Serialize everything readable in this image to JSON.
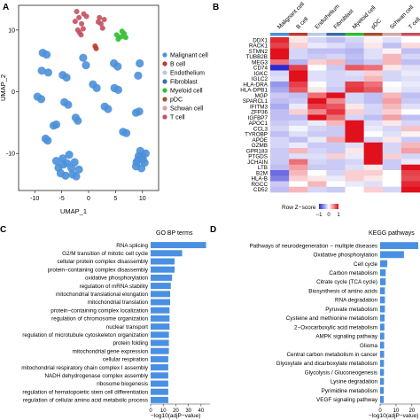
{
  "panels": {
    "a": {
      "letter": "A"
    },
    "b": {
      "letter": "B"
    },
    "c": {
      "letter": "C"
    },
    "d": {
      "letter": "D"
    }
  },
  "colors": {
    "malignant": "#4a90d9",
    "bcell": "#c0392b",
    "endothelium": "#b9c9e6",
    "fibroblast": "#3a6ea5",
    "myeloid": "#2fbf2f",
    "pdc": "#a0522d",
    "schwan": "#d4a5a5",
    "tcell": "#c4505e",
    "bar": "#4a90e2",
    "heat_low": "#2b2bd6",
    "heat_mid": "#ffffff",
    "heat_high": "#e0101c"
  },
  "chart_data": [
    {
      "type": "scatter",
      "title": "",
      "xlabel": "UMAP_1",
      "ylabel": "UMAP_2",
      "xticks": [
        "-10",
        "-5",
        "0",
        "5",
        "10"
      ],
      "yticks": [
        "10",
        "0",
        "-10"
      ],
      "xlim": [
        -13,
        13
      ],
      "ylim": [
        -16,
        14
      ],
      "legend": {
        "placement": "right",
        "entries": [
          "Malignant cell",
          "B cell",
          "Endothelium",
          "Fibroblast",
          "Myeloid cell",
          "pDC",
          "Schwan cell",
          "T cell"
        ]
      },
      "clusters": [
        {
          "cell_type": "T cell",
          "points": [
            [
              -2.2,
              13.0
            ],
            [
              -1.8,
              12.0
            ],
            [
              -1.3,
              11.0
            ],
            [
              -2.0,
              10.0
            ],
            [
              -1.4,
              9.2
            ],
            [
              -0.9,
              12.6
            ],
            [
              -2.5,
              11.4
            ],
            [
              -1.0,
              10.2
            ],
            [
              -0.4,
              12.2
            ],
            [
              -1.7,
              9.6
            ]
          ]
        },
        {
          "cell_type": "T cell",
          "points": [
            [
              2.0,
              12.0
            ],
            [
              2.3,
              11.0
            ],
            [
              2.6,
              10.3
            ],
            [
              1.8,
              11.3
            ],
            [
              2.9,
              11.7
            ]
          ]
        },
        {
          "cell_type": "B cell",
          "points": [
            [
              1.2,
              7.4
            ],
            [
              1.4,
              7.0
            ]
          ]
        },
        {
          "cell_type": "Myeloid cell",
          "points": [
            [
              5.2,
              9.2
            ],
            [
              6.0,
              8.9
            ],
            [
              6.6,
              9.4
            ],
            [
              5.5,
              8.5
            ],
            [
              6.9,
              8.8
            ],
            [
              6.2,
              9.8
            ]
          ]
        },
        {
          "cell_type": "Malignant cell",
          "points": [
            [
              -8.5,
              6.3
            ],
            [
              -7.8,
              6.0
            ],
            [
              -7.5,
              3.1
            ],
            [
              -8.7,
              3.4
            ],
            [
              -1.0,
              5.5
            ],
            [
              -0.5,
              4.3
            ],
            [
              4.7,
              4.6
            ],
            [
              5.4,
              4.1
            ],
            [
              9.5,
              4.6
            ],
            [
              9.2,
              2.6
            ],
            [
              -4.8,
              2.7
            ],
            [
              -4.1,
              2.3
            ],
            [
              0.8,
              1.2
            ],
            [
              1.5,
              0.6
            ],
            [
              4.8,
              0.6
            ],
            [
              5.5,
              0.3
            ]
          ]
        },
        {
          "cell_type": "Malignant cell",
          "points": [
            [
              -9.5,
              -0.8
            ],
            [
              -8.8,
              -1.2
            ],
            [
              -4.5,
              -1.7
            ],
            [
              -3.8,
              -2.1
            ],
            [
              -2.4,
              -4.2
            ],
            [
              -2.0,
              -4.7
            ],
            [
              -6.5,
              -5.5
            ],
            [
              -6.0,
              -5.3
            ],
            [
              -8.0,
              -7.6
            ],
            [
              -7.6,
              -7.9
            ],
            [
              3.0,
              -2.4
            ],
            [
              3.6,
              -2.8
            ],
            [
              8.8,
              -3.4
            ],
            [
              9.4,
              -3.2
            ],
            [
              6.4,
              -6.5
            ],
            [
              7.0,
              -6.7
            ]
          ]
        },
        {
          "cell_type": "Malignant cell",
          "points": [
            [
              -4.8,
              -10.8
            ],
            [
              -4.0,
              -11.6
            ],
            [
              -3.2,
              -12.4
            ],
            [
              -5.6,
              -12.3
            ],
            [
              -4.3,
              -13.6
            ],
            [
              -2.6,
              -11.4
            ],
            [
              -3.6,
              -10.2
            ],
            [
              -5.2,
              -13.2
            ],
            [
              -3.0,
              -13.4
            ],
            [
              -4.7,
              -11.8
            ],
            [
              -1.8,
              -12.6
            ],
            [
              -2.3,
              -13.7
            ],
            [
              -6.0,
              -11.2
            ]
          ]
        },
        {
          "cell_type": "Malignant cell",
          "points": [
            [
              9.6,
              -9.6
            ],
            [
              10.0,
              -10.4
            ],
            [
              9.2,
              -11.0
            ],
            [
              10.4,
              -11.5
            ],
            [
              9.8,
              -12.4
            ],
            [
              8.8,
              -12.1
            ],
            [
              10.6,
              -10.0
            ],
            [
              9.3,
              -10.4
            ],
            [
              10.1,
              -11.0
            ],
            [
              8.9,
              -11.4
            ]
          ]
        }
      ]
    },
    {
      "type": "heatmap",
      "title": "",
      "columns": [
        "Malignant cell",
        "B cell",
        "Endothelium",
        "Fibroblast",
        "Myeloid cell",
        "pDC",
        "Schwan cell",
        "T cell"
      ],
      "rows": [
        "DDX1",
        "RACK1",
        "STMN2",
        "TUBB2B",
        "MEG3",
        "CD74",
        "IGKC",
        "IGLC2",
        "HLA-DRA",
        "HLA-DPB1",
        "MGP",
        "SPARCL1",
        "IFITM3",
        "ZFP36",
        "IGFBP7",
        "APOC1",
        "CCL3",
        "TYROBP",
        "APOE",
        "GZMB",
        "GPR183",
        "PTGDS",
        "JCHAIN",
        "LTB",
        "B2M",
        "HLA-B",
        "RGCC",
        "CD52"
      ],
      "values": [
        [
          1.8,
          0.2,
          -0.4,
          -0.6,
          -0.4,
          0.1,
          -0.3,
          0.0
        ],
        [
          1.6,
          0.4,
          -0.2,
          -0.3,
          -0.5,
          0.2,
          -0.6,
          0.3
        ],
        [
          2.2,
          -0.4,
          -0.6,
          -0.6,
          -0.7,
          -0.3,
          0.1,
          -0.6
        ],
        [
          2.0,
          -0.4,
          -0.5,
          -0.4,
          -0.6,
          -0.3,
          0.6,
          -0.4
        ],
        [
          1.2,
          -0.7,
          0.4,
          0.6,
          -0.7,
          -0.5,
          0.6,
          -0.6
        ],
        [
          -2.6,
          1.6,
          0.0,
          -0.5,
          1.4,
          1.2,
          0.2,
          -0.3
        ],
        [
          -0.4,
          2.4,
          -0.3,
          -0.4,
          -0.3,
          0.4,
          -0.4,
          -0.2
        ],
        [
          -0.3,
          2.3,
          -0.3,
          -0.4,
          -0.4,
          0.6,
          -0.4,
          -0.3
        ],
        [
          -1.0,
          1.6,
          0.0,
          -0.4,
          1.6,
          1.2,
          0.0,
          -0.2
        ],
        [
          -0.8,
          1.4,
          0.2,
          -0.5,
          1.7,
          1.4,
          -0.1,
          -0.3
        ],
        [
          -0.5,
          -0.6,
          1.2,
          2.2,
          -0.4,
          -0.6,
          0.6,
          -0.6
        ],
        [
          -0.6,
          -0.5,
          2.2,
          1.0,
          -0.4,
          -0.6,
          0.8,
          -0.5
        ],
        [
          -0.8,
          -0.2,
          1.6,
          1.4,
          0.2,
          -0.4,
          0.6,
          -0.3
        ],
        [
          -0.6,
          0.4,
          1.0,
          1.7,
          0.4,
          -0.4,
          0.4,
          0.0
        ],
        [
          -0.6,
          -0.6,
          2.2,
          1.2,
          -0.4,
          -0.6,
          0.8,
          -0.6
        ],
        [
          -0.5,
          -0.4,
          -0.2,
          0.6,
          2.4,
          -0.3,
          0.2,
          -0.4
        ],
        [
          -0.4,
          -0.1,
          -0.4,
          -0.5,
          2.2,
          -0.2,
          -0.4,
          0.5
        ],
        [
          -0.6,
          -0.3,
          -0.5,
          -0.5,
          2.3,
          0.0,
          -0.3,
          0.1
        ],
        [
          -0.4,
          -0.6,
          -0.2,
          0.7,
          2.0,
          -0.4,
          0.2,
          -0.5
        ],
        [
          -0.4,
          -0.2,
          -0.5,
          -0.5,
          -0.3,
          2.4,
          -0.4,
          0.6
        ],
        [
          -0.5,
          0.6,
          -0.4,
          -0.5,
          0.2,
          2.0,
          -0.4,
          0.8
        ],
        [
          -0.5,
          -0.3,
          -0.3,
          0.4,
          -0.2,
          2.3,
          0.4,
          -0.4
        ],
        [
          -0.5,
          1.2,
          -0.4,
          -0.5,
          -0.4,
          2.0,
          -0.5,
          -0.2
        ],
        [
          -0.6,
          0.8,
          -0.5,
          -0.5,
          -0.3,
          0.2,
          -0.5,
          2.0
        ],
        [
          -1.4,
          0.6,
          0.0,
          -0.4,
          0.4,
          0.4,
          0.0,
          1.6
        ],
        [
          -1.2,
          0.4,
          0.2,
          -0.2,
          0.4,
          0.2,
          0.0,
          1.5
        ],
        [
          -0.5,
          0.0,
          0.6,
          0.0,
          -0.2,
          -0.3,
          0.0,
          1.8
        ],
        [
          -0.6,
          0.6,
          -0.4,
          -0.5,
          0.0,
          0.4,
          -0.4,
          2.0
        ]
      ],
      "legend": {
        "title": "Row Z−score",
        "ticks": [
          "−1",
          "0",
          "1"
        ],
        "placement": "bottom"
      }
    },
    {
      "type": "bar",
      "orientation": "horizontal",
      "title": "GO BP terms",
      "xlabel": "−log10(adjP−value)",
      "xticks": [
        "0",
        "10",
        "20",
        "30",
        "40"
      ],
      "xlim": [
        0,
        45
      ],
      "categories": [
        "RNA splicing",
        "G2/M transition of mitotic cell cycle",
        "cellular protein complex disassembly",
        "protein−containing complex disassembly",
        "oxidative phosphorylation",
        "regulation of mRNA stability",
        "mitochondrial translational elongation",
        "mitochondrial translation",
        "protein−containing complex localization",
        "regulation of chromosome organization",
        "nuclear transport",
        "regulation of microtubule cytoskeleton organization",
        "protein folding",
        "mitochondrial gene expression",
        "cellular respiration",
        "mitochondrial respiratory chain complex I assembly",
        "NADH dehydrogenase complex assembly",
        "ribosome biogenesis",
        "regulation of hematopoietic stem cell differentiation",
        "regulation of cellular amino acid metabolic process"
      ],
      "values": [
        44,
        25,
        19,
        19,
        17,
        16,
        15.5,
        15.5,
        15,
        15,
        15,
        14.5,
        14.5,
        14.5,
        14,
        14,
        14,
        14,
        14,
        14
      ]
    },
    {
      "type": "bar",
      "orientation": "horizontal",
      "title": "KEGG pathways",
      "xlabel": "−log10(adjP−value)",
      "xticks": [
        "0",
        "10",
        "20"
      ],
      "xlim": [
        0,
        24
      ],
      "categories": [
        "Pathways of neurodegeneration − multiple diseases",
        "Oxidative phosphorylation",
        "Cell cycle",
        "Carbon metabolism",
        "Citrate cycle (TCA cycle)",
        "Biosynthesis of amino acids",
        "RNA degradation",
        "Pyruvate metabolism",
        "Cysteine and methionine metabolism",
        "2−Oxocarboxylic acid metabolism",
        "AMPK signaling pathway",
        "Glioma",
        "Central carbon metabolism in cancer",
        "Glyoxylate and dicarboxylate metabolism",
        "Glycolysis / Gluconeogenesis",
        "Lysine degradation",
        "Pyrimidine metabolism",
        "VEGF signaling pathway"
      ],
      "values": [
        24,
        15,
        4.5,
        3.5,
        3.5,
        3.0,
        3.0,
        3.0,
        2.8,
        2.7,
        2.6,
        2.5,
        2.5,
        2.4,
        2.4,
        2.4,
        2.3,
        2.3
      ]
    }
  ]
}
